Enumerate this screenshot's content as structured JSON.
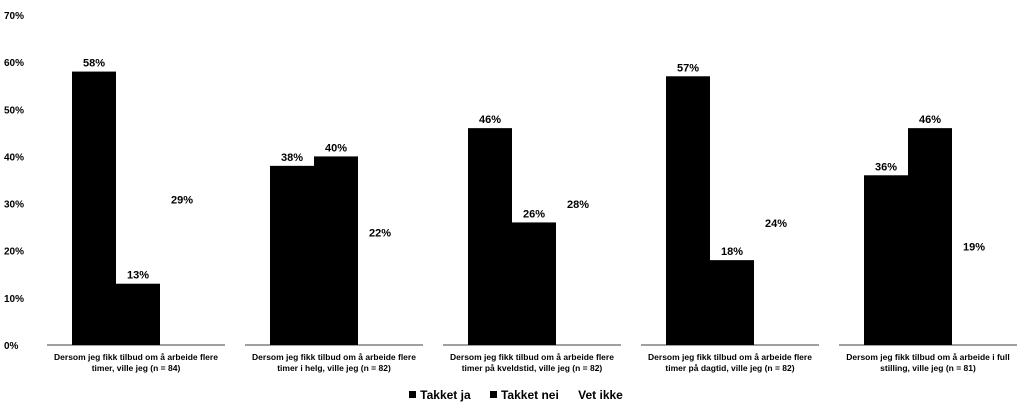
{
  "chart_data": {
    "type": "bar",
    "categories": [
      [
        "Dersom jeg fikk tilbud om å arbeide flere",
        "timer, ville jeg (n = 84)"
      ],
      [
        "Dersom jeg fikk tilbud om å arbeide flere",
        "timer i helg, ville jeg (n = 82)"
      ],
      [
        "Dersom jeg fikk tilbud om å arbeide flere",
        "timer på kveldstid, ville jeg (n = 82)"
      ],
      [
        "Dersom jeg fikk tilbud om å arbeide flere",
        "timer på dagtid, ville jeg (n = 82)"
      ],
      [
        "Dersom jeg fikk tilbud om å arbeide i full",
        "stilling, ville jeg (n = 81)"
      ]
    ],
    "series": [
      {
        "name": "Takket ja",
        "values": [
          58,
          38,
          46,
          57,
          36
        ],
        "labels": [
          "58%",
          "38%",
          "46%",
          "57%",
          "36%"
        ],
        "color": "#000000"
      },
      {
        "name": "Takket nei",
        "values": [
          13,
          40,
          26,
          18,
          46
        ],
        "labels": [
          "13%",
          "40%",
          "26%",
          "18%",
          "46%"
        ],
        "color": "#000000"
      },
      {
        "name": "Vet ikke",
        "values": [
          29,
          22,
          28,
          24,
          19
        ],
        "labels": [
          "29%",
          "22%",
          "28%",
          "24%",
          "19%"
        ],
        "color": "#ffffff"
      }
    ],
    "ylim": [
      0,
      70
    ],
    "yticks": [
      0,
      10,
      20,
      30,
      40,
      50,
      60,
      70
    ],
    "ytick_labels": [
      "0%",
      "10%",
      "20%",
      "30%",
      "40%",
      "50%",
      "60%",
      "70%"
    ],
    "grid": false,
    "legend_position": "bottom"
  },
  "legend": [
    {
      "label": "Takket ja",
      "marker": "square"
    },
    {
      "label": "Takket nei",
      "marker": "square"
    },
    {
      "label": "Vet ikke",
      "marker": "none"
    }
  ]
}
